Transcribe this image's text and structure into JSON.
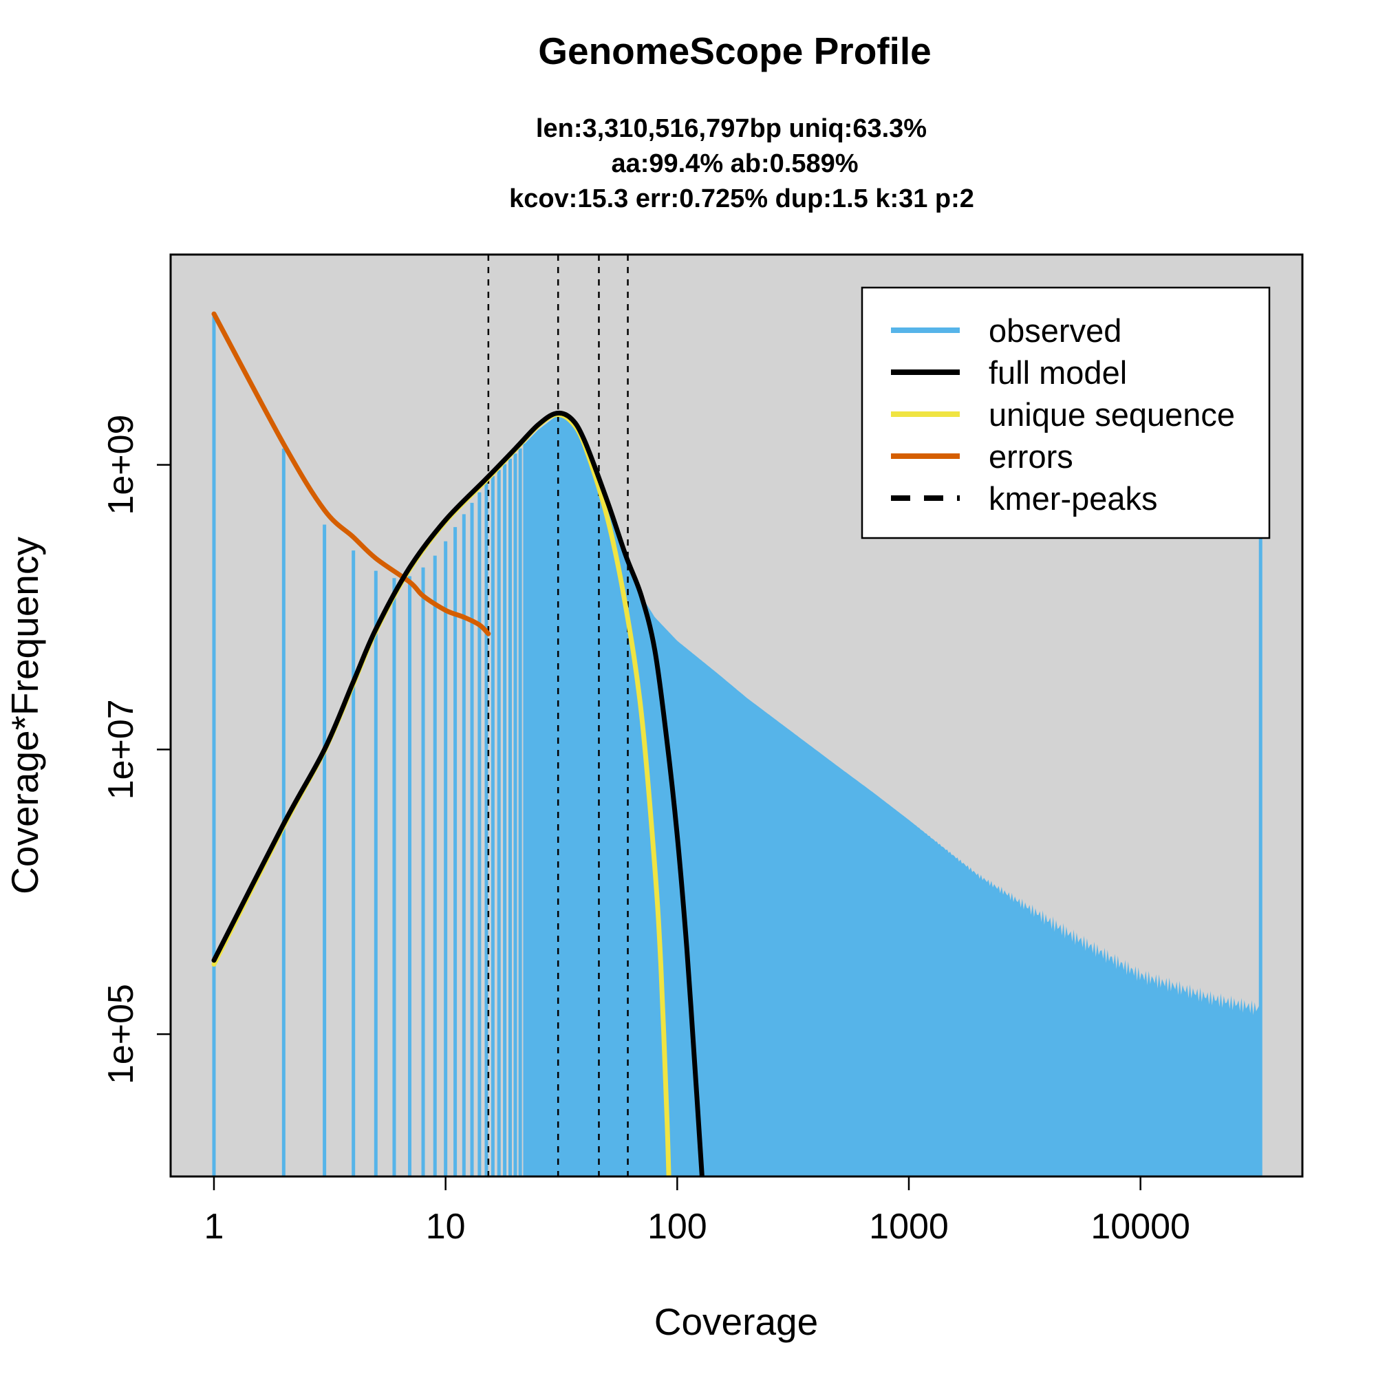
{
  "chart_data": {
    "type": "bar",
    "title": "GenomeScope Profile",
    "subtitle_lines": [
      "len:3,310,516,797bp uniq:63.3%",
      "aa:99.4% ab:0.589%",
      "kcov:15.3 err:0.725%  dup:1.5  k:31 p:2"
    ],
    "xlabel": "Coverage",
    "ylabel": "Coverage*Frequency",
    "x_scale": "log",
    "y_scale": "log",
    "xlim": [
      0.65,
      50000
    ],
    "ylim": [
      10000,
      30000000000
    ],
    "x_ticks": [
      1,
      10,
      100,
      1000,
      10000
    ],
    "x_tick_labels": [
      "1",
      "10",
      "100",
      "1000",
      "10000"
    ],
    "y_ticks": [
      100000,
      10000000,
      1000000000
    ],
    "y_tick_labels": [
      "1e+05",
      "1e+07",
      "1e+09"
    ],
    "background": "#d3d3d3",
    "kmer_peaks": [
      15.3,
      30.6,
      45.9,
      61.2
    ],
    "observed_points": [
      [
        1,
        11000000000
      ],
      [
        2,
        1300000000
      ],
      [
        3,
        380000000
      ],
      [
        4,
        250000000
      ],
      [
        5,
        180000000
      ],
      [
        6,
        160000000
      ],
      [
        7,
        165000000
      ],
      [
        8,
        190000000
      ],
      [
        9,
        230000000
      ],
      [
        10,
        290000000
      ],
      [
        12,
        450000000
      ],
      [
        15,
        750000000
      ],
      [
        20,
        1200000000
      ],
      [
        25,
        1750000000
      ],
      [
        30,
        2200000000
      ],
      [
        35,
        2100000000
      ],
      [
        40,
        1500000000
      ],
      [
        50,
        580000000
      ],
      [
        60,
        230000000
      ],
      [
        70,
        120000000
      ],
      [
        80,
        85000000
      ],
      [
        100,
        58000000
      ],
      [
        150,
        34000000
      ],
      [
        200,
        23000000
      ],
      [
        300,
        14000000
      ],
      [
        500,
        7500000
      ],
      [
        700,
        5000000
      ],
      [
        1000,
        3200000
      ],
      [
        2000,
        1300000
      ],
      [
        3000,
        850000
      ],
      [
        5000,
        500000
      ],
      [
        10000,
        260000
      ],
      [
        20000,
        180000
      ],
      [
        33000,
        150000
      ]
    ],
    "last_bin": [
      33000,
      400000000
    ],
    "series": [
      {
        "name": "full model",
        "color": "#000000",
        "points": [
          [
            1,
            330000
          ],
          [
            2,
            3000000
          ],
          [
            3,
            10000000
          ],
          [
            4,
            30000000
          ],
          [
            5,
            70000000
          ],
          [
            7,
            190000000
          ],
          [
            10,
            410000000
          ],
          [
            15,
            800000000
          ],
          [
            20,
            1300000000
          ],
          [
            25,
            1900000000
          ],
          [
            30,
            2300000000
          ],
          [
            35,
            2100000000
          ],
          [
            40,
            1450000000
          ],
          [
            50,
            550000000
          ],
          [
            60,
            230000000
          ],
          [
            70,
            120000000
          ],
          [
            80,
            50000000
          ],
          [
            90,
            12000000
          ],
          [
            100,
            2500000
          ],
          [
            110,
            400000
          ],
          [
            120,
            50000
          ],
          [
            128,
            10000
          ]
        ]
      },
      {
        "name": "unique sequence",
        "color": "#f0e442",
        "points": [
          [
            1,
            310000
          ],
          [
            2,
            2900000
          ],
          [
            3,
            9800000
          ],
          [
            4,
            29000000
          ],
          [
            5,
            68000000
          ],
          [
            7,
            185000000
          ],
          [
            10,
            400000000
          ],
          [
            15,
            780000000
          ],
          [
            20,
            1280000000
          ],
          [
            25,
            1870000000
          ],
          [
            30,
            2250000000
          ],
          [
            35,
            2000000000
          ],
          [
            40,
            1350000000
          ],
          [
            50,
            420000000
          ],
          [
            60,
            100000000
          ],
          [
            70,
            18000000
          ],
          [
            80,
            1500000
          ],
          [
            85,
            300000
          ],
          [
            90,
            30000
          ],
          [
            92,
            10000
          ]
        ]
      },
      {
        "name": "errors",
        "color": "#d55e00",
        "points": [
          [
            1,
            11500000000
          ],
          [
            2,
            1400000000
          ],
          [
            3,
            480000000
          ],
          [
            4,
            310000000
          ],
          [
            5,
            220000000
          ],
          [
            7,
            150000000
          ],
          [
            8,
            120000000
          ],
          [
            10,
            95000000
          ],
          [
            12,
            85000000
          ],
          [
            14,
            75000000
          ],
          [
            15.3,
            65000000
          ]
        ]
      }
    ],
    "legend": {
      "position": "top-right",
      "items": [
        {
          "label": "observed",
          "color": "#56b4e9",
          "style": "solid"
        },
        {
          "label": "full model",
          "color": "#000000",
          "style": "solid"
        },
        {
          "label": "unique sequence",
          "color": "#f0e442",
          "style": "solid"
        },
        {
          "label": "errors",
          "color": "#d55e00",
          "style": "solid"
        },
        {
          "label": "kmer-peaks",
          "color": "#000000",
          "style": "dashed"
        }
      ]
    }
  }
}
